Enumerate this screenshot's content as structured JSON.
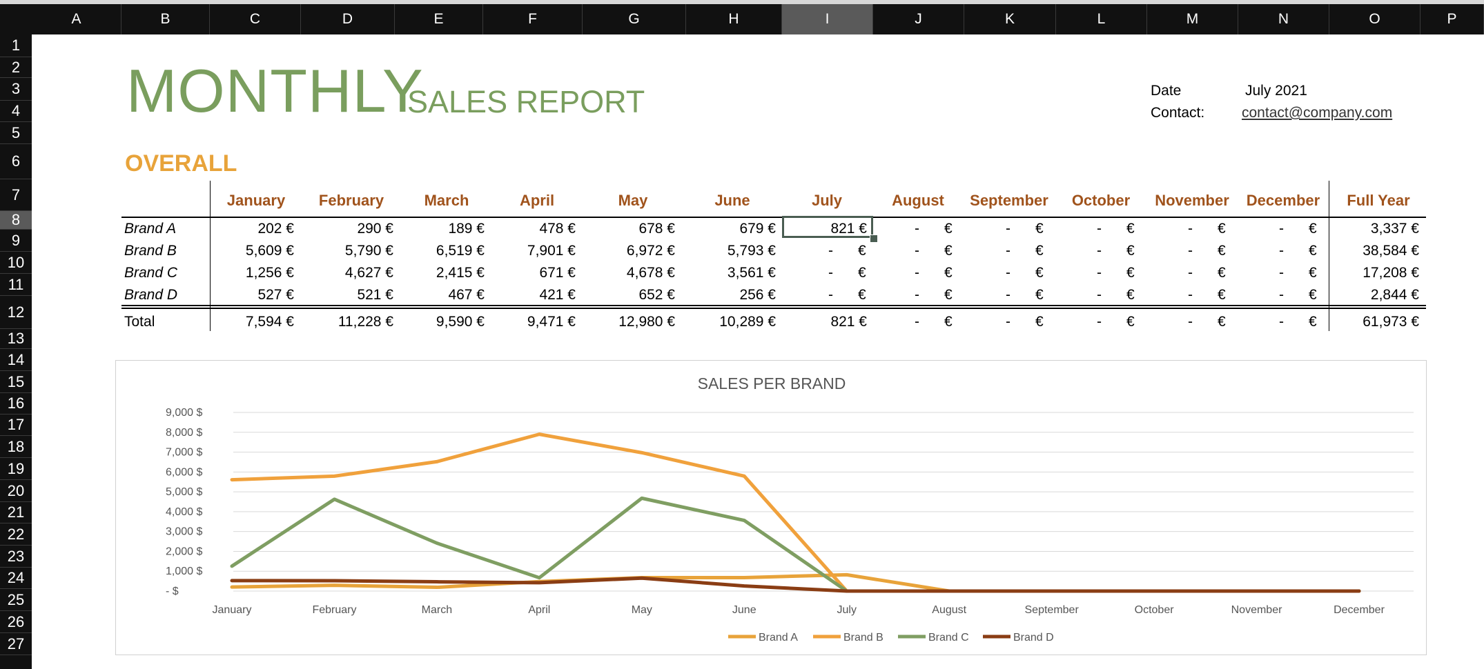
{
  "columns": [
    "A",
    "B",
    "C",
    "D",
    "E",
    "F",
    "G",
    "H",
    "I",
    "J",
    "K",
    "L",
    "M",
    "N",
    "O",
    "P"
  ],
  "selected_column": "I",
  "rows": [
    "1",
    "2",
    "3",
    "4",
    "5",
    "6",
    "7",
    "8",
    "9",
    "10",
    "11",
    "12",
    "13",
    "14",
    "15",
    "16",
    "17",
    "18",
    "19",
    "20",
    "21",
    "22",
    "23",
    "24",
    "25",
    "26",
    "27"
  ],
  "selected_row": "8",
  "header": {
    "title_big": "MONTHLY",
    "title_small": "SALES REPORT",
    "date_label": "Date",
    "date_value": "July 2021",
    "contact_label": "Contact:",
    "contact_value": "contact@company.com"
  },
  "overall_label": "OVERALL",
  "table": {
    "months": [
      "January",
      "February",
      "March",
      "April",
      "May",
      "June",
      "July",
      "August",
      "September",
      "October",
      "November",
      "December"
    ],
    "full_year_label": "Full Year",
    "currency": "€",
    "dash": "-",
    "rows": [
      {
        "brand": "Brand A",
        "values": [
          "202 €",
          "290 €",
          "189 €",
          "478 €",
          "678 €",
          "679 €",
          "821 €"
        ],
        "full_year": "3,337 €"
      },
      {
        "brand": "Brand B",
        "values": [
          "5,609 €",
          "5,790 €",
          "6,519 €",
          "7,901 €",
          "6,972 €",
          "5,793 €"
        ],
        "full_year": "38,584 €"
      },
      {
        "brand": "Brand C",
        "values": [
          "1,256 €",
          "4,627 €",
          "2,415 €",
          "671 €",
          "4,678 €",
          "3,561 €"
        ],
        "full_year": "17,208 €"
      },
      {
        "brand": "Brand D",
        "values": [
          "527 €",
          "521 €",
          "467 €",
          "421 €",
          "652 €",
          "256 €"
        ],
        "full_year": "2,844 €"
      }
    ],
    "total": {
      "label": "Total",
      "values": [
        "7,594 €",
        "11,228 €",
        "9,590 €",
        "9,471 €",
        "12,980 €",
        "10,289 €",
        "821 €"
      ],
      "full_year": "61,973 €"
    }
  },
  "chart_data": {
    "type": "line",
    "title": "SALES PER BRAND",
    "categories": [
      "January",
      "February",
      "March",
      "April",
      "May",
      "June",
      "July",
      "August",
      "September",
      "October",
      "November",
      "December"
    ],
    "ylim": [
      0,
      9000
    ],
    "y_ticks": [
      "9,000 $",
      "8,000 $",
      "7,000 $",
      "6,000 $",
      "5,000 $",
      "4,000 $",
      "3,000 $",
      "2,000 $",
      "1,000 $",
      "-   $"
    ],
    "legend_position": "bottom",
    "grid": true,
    "series": [
      {
        "name": "Brand A",
        "color": "#e8a33a",
        "values": [
          202,
          290,
          189,
          478,
          678,
          679,
          821,
          0,
          0,
          0,
          0,
          0
        ]
      },
      {
        "name": "Brand B",
        "color": "#f0a13c",
        "values": [
          5609,
          5790,
          6519,
          7901,
          6972,
          5793,
          0,
          0,
          0,
          0,
          0,
          0
        ]
      },
      {
        "name": "Brand C",
        "color": "#7f9e62",
        "values": [
          1256,
          4627,
          2415,
          671,
          4678,
          3561,
          0,
          0,
          0,
          0,
          0,
          0
        ]
      },
      {
        "name": "Brand D",
        "color": "#8a3d14",
        "values": [
          527,
          521,
          467,
          421,
          652,
          256,
          0,
          0,
          0,
          0,
          0,
          0
        ]
      }
    ]
  }
}
